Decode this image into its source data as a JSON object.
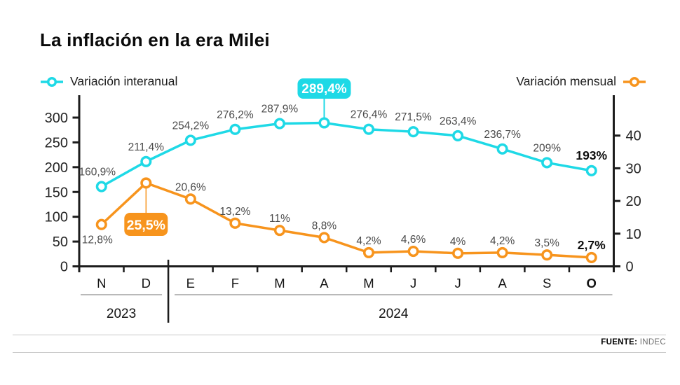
{
  "title": "La inflación en la era Milei",
  "legend": {
    "interanual": "Variación interanual",
    "mensual": "Variación mensual"
  },
  "footer": {
    "source_label": "FUENTE:",
    "source_value": "INDEC"
  },
  "colors": {
    "interanual": "#1ed9e6",
    "mensual": "#f7941d",
    "point_label": "#4a4a4a",
    "bold_label": "#0d0d0d",
    "axis": "#1c1c1c",
    "year_group_line": "#b9b9b9",
    "badge_text": "#ffffff"
  },
  "chart_data": {
    "type": "line",
    "title": "La inflación en la era Milei",
    "x_months": [
      "N",
      "D",
      "E",
      "F",
      "M",
      "A",
      "M",
      "J",
      "J",
      "A",
      "S",
      "O"
    ],
    "bold_month_index": 11,
    "year_groups": [
      {
        "label": "2023",
        "months": [
          0,
          1
        ]
      },
      {
        "label": "2024",
        "months": [
          2,
          11
        ]
      }
    ],
    "left_axis": {
      "ticks": [
        0,
        50,
        100,
        150,
        200,
        250,
        300
      ],
      "max": 300
    },
    "right_axis": {
      "ticks": [
        0,
        10,
        20,
        30,
        40
      ],
      "max": 45.5
    },
    "legend_position": "top",
    "grid": false,
    "series": [
      {
        "name": "Variación interanual",
        "axis": "left",
        "color": "#1ed9e6",
        "values": [
          160.9,
          211.4,
          254.2,
          276.2,
          287.9,
          289.4,
          276.4,
          271.5,
          263.4,
          236.7,
          209,
          193
        ],
        "labels": [
          "160,9%",
          "211,4%",
          "254,2%",
          "276,2%",
          "287,9%",
          "289,4%",
          "276,4%",
          "271,5%",
          "263,4%",
          "236,7%",
          "209%",
          "193%"
        ],
        "highlight_index": 5,
        "bold_label_index": 11,
        "label_below_indices": []
      },
      {
        "name": "Variación mensual",
        "axis": "right",
        "color": "#f7941d",
        "values": [
          12.8,
          25.5,
          20.6,
          13.2,
          11,
          8.8,
          4.2,
          4.6,
          4,
          4.2,
          3.5,
          2.7
        ],
        "labels": [
          "12,8%",
          "25,5%",
          "20,6%",
          "13,2%",
          "11%",
          "8,8%",
          "4,2%",
          "4,6%",
          "4%",
          "4,2%",
          "3,5%",
          "2,7%"
        ],
        "highlight_index": 1,
        "bold_label_index": 11,
        "label_below_indices": [
          0
        ]
      }
    ],
    "source": "FUENTE: INDEC"
  }
}
